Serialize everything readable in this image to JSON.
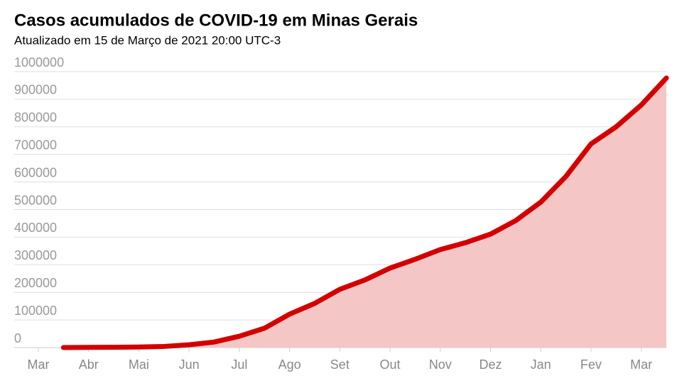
{
  "chart_data": {
    "type": "line",
    "title": "Casos acumulados de COVID-19 em Minas Gerais",
    "subtitle": "Atualizado em 15 de Março de 2021 20:00 UTC-3",
    "categories": [
      "Mar",
      null,
      "Abr",
      null,
      "Mai",
      null,
      "Jun",
      null,
      "Jul",
      null,
      "Ago",
      null,
      "Set",
      null,
      "Out",
      null,
      "Nov",
      null,
      "Dez",
      null,
      "Jan",
      null,
      "Fev",
      null,
      "Mar",
      null
    ],
    "values": [
      null,
      0,
      500,
      1000,
      2000,
      4000,
      10000,
      20000,
      41000,
      70000,
      121000,
      160000,
      211000,
      245000,
      288000,
      320000,
      355000,
      380000,
      411000,
      460000,
      527000,
      620000,
      738000,
      800000,
      879000,
      977000
    ],
    "color": "#d40000",
    "area_color": "#f5c6c6",
    "ylim": [
      0,
      1000000
    ],
    "yticks": [
      0,
      100000,
      200000,
      300000,
      400000,
      500000,
      600000,
      700000,
      800000,
      900000,
      1000000
    ],
    "grid": true
  }
}
